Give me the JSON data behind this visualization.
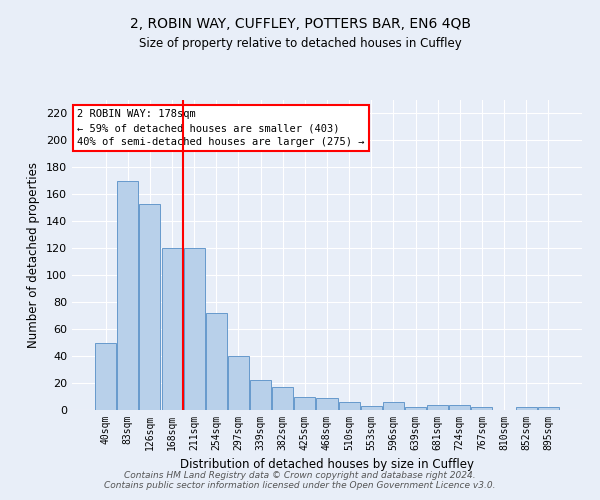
{
  "title1": "2, ROBIN WAY, CUFFLEY, POTTERS BAR, EN6 4QB",
  "title2": "Size of property relative to detached houses in Cuffley",
  "xlabel": "Distribution of detached houses by size in Cuffley",
  "ylabel": "Number of detached properties",
  "categories": [
    "40sqm",
    "83sqm",
    "126sqm",
    "168sqm",
    "211sqm",
    "254sqm",
    "297sqm",
    "339sqm",
    "382sqm",
    "425sqm",
    "468sqm",
    "510sqm",
    "553sqm",
    "596sqm",
    "639sqm",
    "681sqm",
    "724sqm",
    "767sqm",
    "810sqm",
    "852sqm",
    "895sqm"
  ],
  "values": [
    50,
    170,
    153,
    120,
    120,
    72,
    40,
    22,
    17,
    10,
    9,
    6,
    3,
    6,
    2,
    4,
    4,
    2,
    0,
    2,
    2
  ],
  "bar_color": "#b8d0ea",
  "bar_edge_color": "#6699cc",
  "bg_color": "#e8eef8",
  "grid_color": "#ffffff",
  "vline_x": 3.5,
  "vline_color": "red",
  "annotation_text": "2 ROBIN WAY: 178sqm\n← 59% of detached houses are smaller (403)\n40% of semi-detached houses are larger (275) →",
  "annotation_box_color": "white",
  "annotation_box_edge": "red",
  "ylim": [
    0,
    230
  ],
  "yticks": [
    0,
    20,
    40,
    60,
    80,
    100,
    120,
    140,
    160,
    180,
    200,
    220
  ],
  "footnote": "Contains HM Land Registry data © Crown copyright and database right 2024.\nContains public sector information licensed under the Open Government Licence v3.0."
}
